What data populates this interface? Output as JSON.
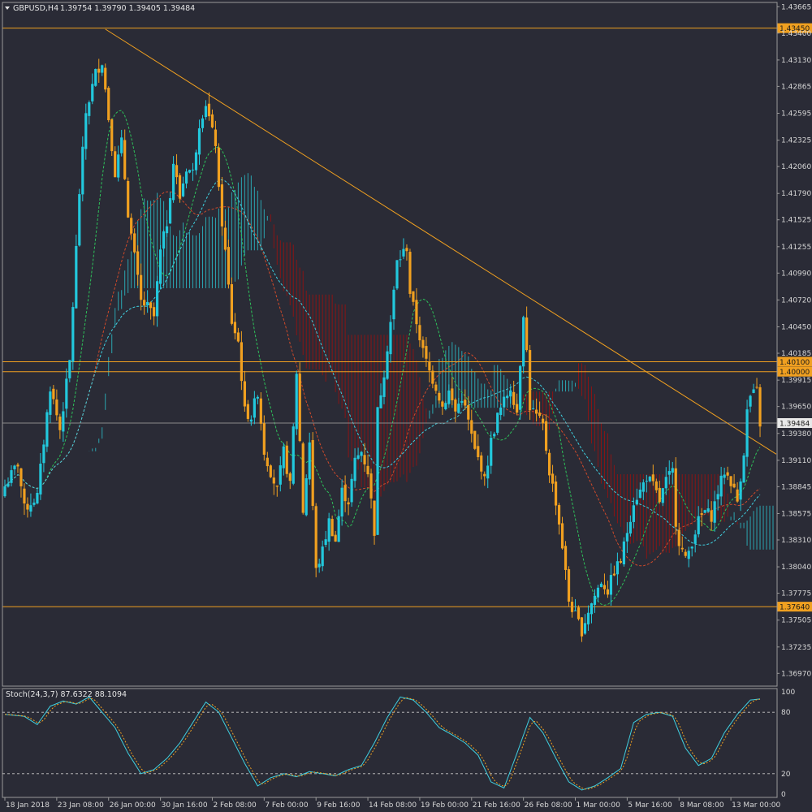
{
  "header": {
    "symbol": "GBPUSD,H4",
    "ohlc": "1.39754 1.39790 1.39405 1.39484"
  },
  "stoch_header": "Stoch(24,3,7) 87.6322 88.1094",
  "colors": {
    "background": "#2a2b36",
    "bull": "#22c8dc",
    "bear": "#f0a020",
    "hline": "#f0a020",
    "trend": "#f0a020",
    "cloud_bull": "#2aa5b0",
    "cloud_bear": "#8a1515",
    "price_label_bg": "#f0a020"
  },
  "chart_data": {
    "type": "candlestick",
    "y_range": [
      1.3685,
      1.437
    ],
    "price_ticks": [
      "1.43665",
      "1.43400",
      "1.43130",
      "1.42865",
      "1.42595",
      "1.42325",
      "1.42060",
      "1.41790",
      "1.41525",
      "1.41255",
      "1.40990",
      "1.40720",
      "1.40450",
      "1.40185",
      "1.39915",
      "1.39650",
      "1.39380",
      "1.39110",
      "1.38845",
      "1.38575",
      "1.38310",
      "1.38040",
      "1.37775",
      "1.37505",
      "1.37235",
      "1.36970"
    ],
    "levels": [
      {
        "value": 1.4345,
        "label": "1.43450"
      },
      {
        "value": 1.401,
        "label": "1.40100"
      },
      {
        "value": 1.4,
        "label": "1.40000"
      },
      {
        "value": 1.3764,
        "label": "1.37640"
      }
    ],
    "current_price": {
      "value": 1.39484,
      "label": "1.39484"
    },
    "trendline": {
      "from": {
        "bar": 31,
        "price": 1.4344
      },
      "to": {
        "bar": 241,
        "price": 1.3911
      }
    },
    "time_labels": [
      {
        "bar": 0,
        "label": "18 Jan 2018"
      },
      {
        "bar": 16,
        "label": "23 Jan 08:00"
      },
      {
        "bar": 32,
        "label": "26 Jan 00:00"
      },
      {
        "bar": 48,
        "label": "30 Jan 16:00"
      },
      {
        "bar": 64,
        "label": "2 Feb 08:00"
      },
      {
        "bar": 80,
        "label": "7 Feb 00:00"
      },
      {
        "bar": 96,
        "label": "9 Feb 16:00"
      },
      {
        "bar": 112,
        "label": "14 Feb 08:00"
      },
      {
        "bar": 128,
        "label": "19 Feb 00:00"
      },
      {
        "bar": 144,
        "label": "21 Feb 16:00"
      },
      {
        "bar": 160,
        "label": "26 Feb 08:00"
      },
      {
        "bar": 176,
        "label": "1 Mar 00:00"
      },
      {
        "bar": 192,
        "label": "5 Mar 16:00"
      },
      {
        "bar": 208,
        "label": "8 Mar 08:00"
      },
      {
        "bar": 224,
        "label": "13 Mar 00:00"
      }
    ],
    "close_anchors": [
      [
        0,
        1.3885
      ],
      [
        4,
        1.3908
      ],
      [
        6,
        1.3862
      ],
      [
        10,
        1.3875
      ],
      [
        14,
        1.3985
      ],
      [
        17,
        1.3942
      ],
      [
        20,
        1.401
      ],
      [
        23,
        1.418
      ],
      [
        25,
        1.426
      ],
      [
        28,
        1.43
      ],
      [
        30,
        1.4312
      ],
      [
        32,
        1.4255
      ],
      [
        34,
        1.42
      ],
      [
        36,
        1.423
      ],
      [
        38,
        1.416
      ],
      [
        40,
        1.4115
      ],
      [
        42,
        1.407
      ],
      [
        44,
        1.4065
      ],
      [
        46,
        1.4055
      ],
      [
        48,
        1.412
      ],
      [
        50,
        1.415
      ],
      [
        52,
        1.421
      ],
      [
        54,
        1.4175
      ],
      [
        56,
        1.4205
      ],
      [
        58,
        1.42
      ],
      [
        60,
        1.425
      ],
      [
        62,
        1.427
      ],
      [
        64,
        1.424
      ],
      [
        65,
        1.423
      ],
      [
        66,
        1.418
      ],
      [
        68,
        1.412
      ],
      [
        70,
        1.405
      ],
      [
        72,
        1.403
      ],
      [
        74,
        1.396
      ],
      [
        76,
        1.3955
      ],
      [
        78,
        1.398
      ],
      [
        80,
        1.392
      ],
      [
        82,
        1.39
      ],
      [
        84,
        1.388
      ],
      [
        86,
        1.392
      ],
      [
        88,
        1.3885
      ],
      [
        90,
        1.4
      ],
      [
        92,
        1.386
      ],
      [
        94,
        1.393
      ],
      [
        96,
        1.38
      ],
      [
        98,
        1.382
      ],
      [
        100,
        1.385
      ],
      [
        102,
        1.383
      ],
      [
        104,
        1.388
      ],
      [
        106,
        1.387
      ],
      [
        108,
        1.391
      ],
      [
        110,
        1.392
      ],
      [
        112,
        1.39
      ],
      [
        114,
        1.384
      ],
      [
        115,
        1.396
      ],
      [
        117,
        1.4
      ],
      [
        119,
        1.405
      ],
      [
        121,
        1.411
      ],
      [
        123,
        1.412
      ],
      [
        124,
        1.4125
      ],
      [
        125,
        1.408
      ],
      [
        127,
        1.405
      ],
      [
        129,
        1.402
      ],
      [
        131,
        1.4
      ],
      [
        133,
        1.3985
      ],
      [
        135,
        1.3965
      ],
      [
        137,
        1.398
      ],
      [
        139,
        1.396
      ],
      [
        141,
        1.3975
      ],
      [
        143,
        1.395
      ],
      [
        145,
        1.392
      ],
      [
        147,
        1.3905
      ],
      [
        148,
        1.389
      ],
      [
        150,
        1.393
      ],
      [
        152,
        1.3955
      ],
      [
        154,
        1.397
      ],
      [
        156,
        1.3985
      ],
      [
        158,
        1.396
      ],
      [
        160,
        1.406
      ],
      [
        161,
        1.402
      ],
      [
        162,
        1.3965
      ],
      [
        164,
        1.3955
      ],
      [
        166,
        1.3945
      ],
      [
        168,
        1.39
      ],
      [
        170,
        1.387
      ],
      [
        172,
        1.3825
      ],
      [
        174,
        1.377
      ],
      [
        176,
        1.3755
      ],
      [
        178,
        1.374
      ],
      [
        180,
        1.376
      ],
      [
        182,
        1.3775
      ],
      [
        184,
        1.379
      ],
      [
        186,
        1.378
      ],
      [
        188,
        1.38
      ],
      [
        190,
        1.381
      ],
      [
        192,
        1.384
      ],
      [
        194,
        1.387
      ],
      [
        196,
        1.388
      ],
      [
        198,
        1.3895
      ],
      [
        200,
        1.3885
      ],
      [
        202,
        1.387
      ],
      [
        204,
        1.389
      ],
      [
        206,
        1.39
      ],
      [
        207,
        1.385
      ],
      [
        208,
        1.383
      ],
      [
        210,
        1.381
      ],
      [
        212,
        1.383
      ],
      [
        214,
        1.385
      ],
      [
        216,
        1.386
      ],
      [
        218,
        1.3855
      ],
      [
        220,
        1.388
      ],
      [
        222,
        1.39
      ],
      [
        224,
        1.389
      ],
      [
        226,
        1.387
      ],
      [
        228,
        1.392
      ],
      [
        229,
        1.396
      ],
      [
        230,
        1.3975
      ],
      [
        232,
        1.398
      ],
      [
        233,
        1.3948
      ]
    ],
    "stochastic": {
      "levels": [
        {
          "value": 100,
          "label": "100"
        },
        {
          "value": 80,
          "label": "80"
        },
        {
          "value": 20,
          "label": "20"
        },
        {
          "value": 0,
          "label": "0"
        }
      ],
      "anchors": [
        [
          0,
          78
        ],
        [
          6,
          76
        ],
        [
          10,
          68
        ],
        [
          14,
          86
        ],
        [
          18,
          91
        ],
        [
          22,
          88
        ],
        [
          26,
          95
        ],
        [
          30,
          80
        ],
        [
          34,
          65
        ],
        [
          38,
          40
        ],
        [
          42,
          20
        ],
        [
          46,
          24
        ],
        [
          50,
          35
        ],
        [
          54,
          50
        ],
        [
          58,
          70
        ],
        [
          62,
          90
        ],
        [
          66,
          80
        ],
        [
          70,
          55
        ],
        [
          74,
          30
        ],
        [
          78,
          8
        ],
        [
          82,
          16
        ],
        [
          86,
          20
        ],
        [
          90,
          17
        ],
        [
          94,
          22
        ],
        [
          98,
          20
        ],
        [
          102,
          18
        ],
        [
          106,
          24
        ],
        [
          110,
          28
        ],
        [
          114,
          50
        ],
        [
          118,
          75
        ],
        [
          122,
          95
        ],
        [
          126,
          92
        ],
        [
          130,
          80
        ],
        [
          134,
          65
        ],
        [
          138,
          58
        ],
        [
          142,
          50
        ],
        [
          146,
          38
        ],
        [
          150,
          12
        ],
        [
          154,
          6
        ],
        [
          158,
          40
        ],
        [
          162,
          75
        ],
        [
          166,
          60
        ],
        [
          170,
          35
        ],
        [
          174,
          12
        ],
        [
          178,
          4
        ],
        [
          182,
          8
        ],
        [
          186,
          16
        ],
        [
          190,
          25
        ],
        [
          194,
          70
        ],
        [
          198,
          78
        ],
        [
          202,
          80
        ],
        [
          206,
          76
        ],
        [
          210,
          45
        ],
        [
          214,
          28
        ],
        [
          218,
          35
        ],
        [
          222,
          60
        ],
        [
          226,
          78
        ],
        [
          230,
          92
        ],
        [
          233,
          93
        ]
      ]
    }
  }
}
